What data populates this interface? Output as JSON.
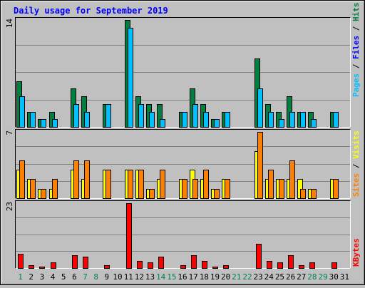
{
  "chart_data": {
    "type": "bar",
    "title": "Daily usage for September 2019",
    "days": [
      "1",
      "2",
      "3",
      "4",
      "5",
      "6",
      "7",
      "8",
      "9",
      "10",
      "11",
      "12",
      "13",
      "14",
      "15",
      "16",
      "17",
      "18",
      "19",
      "20",
      "21",
      "22",
      "23",
      "24",
      "25",
      "26",
      "27",
      "28",
      "29",
      "30",
      "31"
    ],
    "weekend_days": [
      "1",
      "7",
      "8",
      "14",
      "15",
      "21",
      "22",
      "28",
      "29"
    ],
    "panels": [
      {
        "id": "pages-files-hits",
        "ymax_label": "14",
        "ymax": 14,
        "legend": [
          "Pages",
          "Files",
          "Hits"
        ],
        "series": [
          {
            "name": "Hits",
            "color": "#008040",
            "values": [
              6,
              2,
              1,
              2,
              0,
              5,
              4,
              0,
              3,
              0,
              14,
              4,
              3,
              3,
              0,
              2,
              5,
              3,
              1,
              2,
              0,
              0,
              9,
              3,
              2,
              4,
              2,
              2,
              0,
              2,
              0
            ]
          },
          {
            "name": "Files",
            "color": "#00c0ff",
            "values": [
              4,
              2,
              1,
              1,
              0,
              3,
              2,
              0,
              3,
              0,
              13,
              3,
              2,
              1,
              0,
              2,
              3,
              2,
              1,
              2,
              0,
              0,
              5,
              2,
              1,
              2,
              2,
              1,
              0,
              2,
              0
            ]
          },
          {
            "name": "Pages",
            "color": "#00c0ff",
            "values": [
              0,
              0,
              0,
              0,
              0,
              0,
              0,
              0,
              0,
              0,
              0,
              0,
              0,
              0,
              0,
              0,
              0,
              0,
              0,
              0,
              0,
              0,
              0,
              0,
              0,
              0,
              0,
              0,
              0,
              0,
              0
            ]
          }
        ]
      },
      {
        "id": "visits-sites",
        "ymax_label": "7",
        "ymax": 7,
        "legend": [
          "Sites",
          "Visits"
        ],
        "series": [
          {
            "name": "Visits",
            "color": "#ffff00",
            "values": [
              3,
              2,
              1,
              1,
              0,
              3,
              2,
              0,
              3,
              0,
              3,
              3,
              1,
              2,
              0,
              2,
              3,
              2,
              1,
              2,
              0,
              0,
              5,
              2,
              2,
              2,
              2,
              1,
              0,
              2,
              0
            ]
          },
          {
            "name": "Sites",
            "color": "#ff8000",
            "values": [
              4,
              2,
              1,
              2,
              0,
              4,
              4,
              0,
              3,
              0,
              3,
              3,
              1,
              3,
              0,
              2,
              2,
              3,
              1,
              2,
              0,
              0,
              7,
              3,
              2,
              4,
              1,
              1,
              0,
              2,
              0
            ]
          }
        ]
      },
      {
        "id": "kbytes",
        "ymax_label": "23",
        "ymax": 23,
        "legend": [
          "KBytes"
        ],
        "series": [
          {
            "name": "KBytes",
            "color": "#ff0000",
            "values": [
              5,
              1,
              0.5,
              2,
              0,
              4.5,
              4,
              0,
              1,
              0,
              23,
              2.5,
              2,
              4,
              0,
              1,
              4.5,
              2.5,
              0.5,
              1,
              0,
              0,
              8.5,
              2.5,
              2,
              4.5,
              1,
              2,
              0,
              2,
              0
            ]
          }
        ]
      }
    ],
    "colors": {
      "title": "#0000ff",
      "background": "#c0c0c0",
      "weekday_label": "#000000",
      "weekend_label": "#00805c",
      "legend_separator": "#000000"
    }
  }
}
